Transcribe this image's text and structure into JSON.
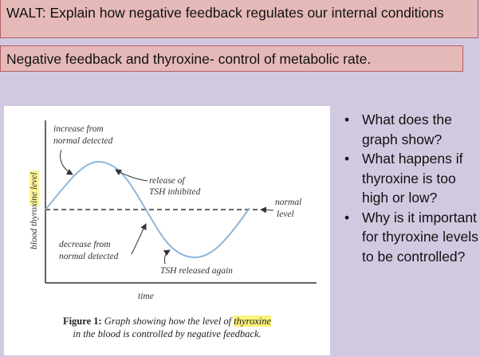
{
  "walt": "WALT: Explain how negative feedback regulates our internal conditions",
  "subtitle": "Negative feedback and thyroxine- control of metabolic rate.",
  "figure": {
    "y_label_prefix": "blood ",
    "y_label_highlight": "thyroxine",
    "y_label_suffix": " level",
    "x_label": "time",
    "annotations": {
      "increase_line1": "increase from",
      "increase_line2": "normal detected",
      "release_line1": "release of",
      "release_line2": "TSH inhibited",
      "normal_line1": "normal",
      "normal_line2": "level",
      "decrease_line1": "decrease from",
      "decrease_line2": "normal detected",
      "tsh_again": "TSH released again"
    },
    "caption": {
      "label": "Figure 1:",
      "text_before": " Graph showing how the level of ",
      "highlight": "thyroxine",
      "text_after": "in the blood is controlled by negative feedback."
    },
    "colors": {
      "curve": "#8fb6d9",
      "highlight": "#fbf27a"
    }
  },
  "questions": [
    "What does the graph show?",
    "What happens if thyroxine is too high or low?",
    "Why is it important for thyroxine levels to be controlled?"
  ],
  "bullet": "•"
}
